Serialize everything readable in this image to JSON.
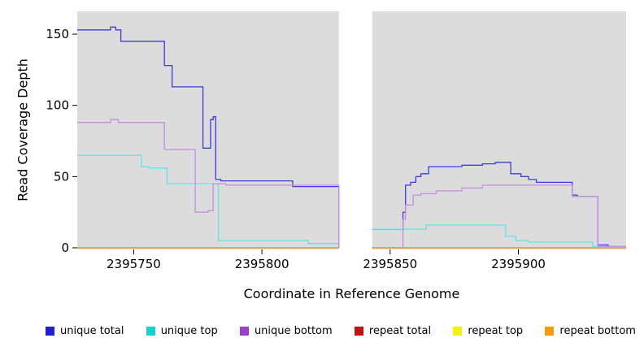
{
  "chart_data": {
    "type": "line",
    "subtype": "step-coverage",
    "title": "",
    "xlabel": "Coordinate in Reference Genome",
    "ylabel": "Read Coverage Depth",
    "xlim": [
      2395728,
      2395942
    ],
    "ylim": [
      0,
      166
    ],
    "x_ticks": [
      2395750,
      2395800,
      2395850,
      2395900
    ],
    "y_ticks": [
      0,
      50,
      100,
      150
    ],
    "grid": false,
    "legend_position": "bottom",
    "panel_background": "#dcdcdc",
    "gap_x": [
      2395830,
      2395843
    ],
    "series": [
      {
        "name": "unique total",
        "color": "#1f1fd1",
        "line_color": "#3d3dd8",
        "segments": [
          [
            [
              2395728,
              153
            ],
            [
              2395741,
              155
            ],
            [
              2395743,
              153
            ],
            [
              2395745,
              145
            ],
            [
              2395762,
              128
            ],
            [
              2395765,
              113
            ],
            [
              2395777,
              70
            ],
            [
              2395780,
              90
            ],
            [
              2395781,
              92
            ],
            [
              2395782,
              48
            ],
            [
              2395784,
              47
            ],
            [
              2395812,
              43
            ],
            [
              2395830,
              0
            ]
          ],
          [
            [
              2395843,
              13
            ],
            [
              2395855,
              25
            ],
            [
              2395856,
              44
            ],
            [
              2395858,
              46
            ],
            [
              2395860,
              50
            ],
            [
              2395862,
              52
            ],
            [
              2395865,
              57
            ],
            [
              2395878,
              58
            ],
            [
              2395886,
              59
            ],
            [
              2395891,
              60
            ],
            [
              2395897,
              52
            ],
            [
              2395901,
              50
            ],
            [
              2395904,
              48
            ],
            [
              2395907,
              46
            ],
            [
              2395921,
              37
            ],
            [
              2395923,
              36
            ],
            [
              2395931,
              2
            ],
            [
              2395935,
              1
            ],
            [
              2395942,
              1
            ]
          ]
        ]
      },
      {
        "name": "unique top",
        "color": "#17cfcf",
        "line_color": "#63e3e3",
        "segments": [
          [
            [
              2395728,
              65
            ],
            [
              2395753,
              57
            ],
            [
              2395756,
              56
            ],
            [
              2395763,
              45
            ],
            [
              2395783,
              5
            ],
            [
              2395818,
              3
            ],
            [
              2395830,
              0
            ]
          ],
          [
            [
              2395843,
              13
            ],
            [
              2395864,
              16
            ],
            [
              2395895,
              8
            ],
            [
              2395899,
              5
            ],
            [
              2395904,
              4
            ],
            [
              2395929,
              1
            ],
            [
              2395942,
              1
            ]
          ]
        ]
      },
      {
        "name": "unique bottom",
        "color": "#9a41c8",
        "line_color": "#c48fe0",
        "segments": [
          [
            [
              2395728,
              88
            ],
            [
              2395741,
              90
            ],
            [
              2395744,
              88
            ],
            [
              2395762,
              69
            ],
            [
              2395774,
              25
            ],
            [
              2395779,
              26
            ],
            [
              2395781,
              45
            ],
            [
              2395786,
              44
            ],
            [
              2395830,
              0
            ]
          ],
          [
            [
              2395843,
              0
            ],
            [
              2395855,
              20
            ],
            [
              2395856,
              30
            ],
            [
              2395859,
              37
            ],
            [
              2395862,
              38
            ],
            [
              2395868,
              40
            ],
            [
              2395878,
              42
            ],
            [
              2395886,
              44
            ],
            [
              2395921,
              36
            ],
            [
              2395931,
              1
            ],
            [
              2395942,
              1
            ]
          ]
        ]
      },
      {
        "name": "repeat total",
        "color": "#c01414",
        "line_color": "#c01414",
        "segments": [
          [
            [
              2395728,
              0
            ],
            [
              2395830,
              0
            ]
          ],
          [
            [
              2395843,
              0
            ],
            [
              2395942,
              0
            ]
          ]
        ]
      },
      {
        "name": "repeat top",
        "color": "#f2f20c",
        "line_color": "#f2f20c",
        "segments": [
          [
            [
              2395728,
              0
            ],
            [
              2395830,
              0
            ]
          ],
          [
            [
              2395843,
              0
            ],
            [
              2395942,
              0
            ]
          ]
        ]
      },
      {
        "name": "repeat bottom",
        "color": "#f59b0f",
        "line_color": "#f59b0f",
        "segments": [
          [
            [
              2395728,
              0
            ],
            [
              2395830,
              0
            ]
          ],
          [
            [
              2395843,
              0
            ],
            [
              2395942,
              0
            ]
          ]
        ]
      }
    ]
  }
}
